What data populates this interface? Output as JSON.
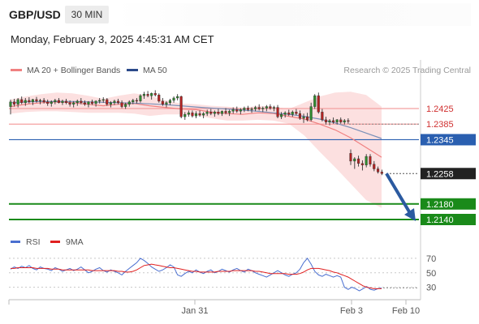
{
  "header": {
    "pair": "GBP/USD",
    "timeframe": "30 MIN",
    "datetime": "Monday, February 3, 2025 4:45:31 AM CET"
  },
  "legend": {
    "bb": {
      "label": "MA 20 + Bollinger Bands",
      "color": "#f08080"
    },
    "ma50": {
      "label": "MA 50",
      "color": "#2b4a8a"
    },
    "credit": "Research © 2025 Trading Central"
  },
  "levels": [
    {
      "value": 1.2425,
      "label": "1.2425",
      "kind": "resistance",
      "color": "#f4a0a0",
      "text_color": "#d03030"
    },
    {
      "value": 1.2385,
      "label": "1.2385",
      "kind": "resistance",
      "color": "#f4a0a0",
      "text_color": "#d03030"
    },
    {
      "value": 1.2345,
      "label": "1.2345",
      "kind": "pivot",
      "color": "#2a5fb0",
      "text_color": "#ffffff"
    },
    {
      "value": 1.2258,
      "label": "1.2258",
      "kind": "last",
      "color": "#222222",
      "text_color": "#ffffff"
    },
    {
      "value": 1.218,
      "label": "1.2180",
      "kind": "support",
      "color": "#1a8a1a",
      "text_color": "#ffffff"
    },
    {
      "value": 1.214,
      "label": "1.2140",
      "kind": "support",
      "color": "#1a8a1a",
      "text_color": "#ffffff"
    }
  ],
  "rsi_legend": {
    "rsi": {
      "label": "RSI",
      "color": "#4a6fd0"
    },
    "ma": {
      "label": "9MA",
      "color": "#e02020"
    }
  },
  "rsi_ticks": [
    "70",
    "50",
    "30"
  ],
  "x_axis": [
    "Jan 31",
    "Feb 3",
    "Feb 10"
  ],
  "chart_data": {
    "type": "line",
    "price_ylim": [
      1.21,
      1.256
    ],
    "candles": [
      [
        1.243,
        1.2448,
        1.241,
        1.2442
      ],
      [
        1.2442,
        1.245,
        1.243,
        1.2436
      ],
      [
        1.2436,
        1.2452,
        1.2428,
        1.2448
      ],
      [
        1.2448,
        1.2456,
        1.2436,
        1.244
      ],
      [
        1.244,
        1.2452,
        1.2432,
        1.2446
      ],
      [
        1.2446,
        1.2454,
        1.2438,
        1.2442
      ],
      [
        1.2442,
        1.245,
        1.2434,
        1.2448
      ],
      [
        1.2448,
        1.2455,
        1.244,
        1.2444
      ],
      [
        1.2444,
        1.245,
        1.2436,
        1.2446
      ],
      [
        1.2446,
        1.2452,
        1.2438,
        1.2442
      ],
      [
        1.2442,
        1.2448,
        1.2432,
        1.2438
      ],
      [
        1.2438,
        1.2446,
        1.243,
        1.2442
      ],
      [
        1.2442,
        1.245,
        1.2436,
        1.2446
      ],
      [
        1.2446,
        1.2452,
        1.2438,
        1.244
      ],
      [
        1.244,
        1.2448,
        1.2434,
        1.2444
      ],
      [
        1.2444,
        1.245,
        1.2436,
        1.244
      ],
      [
        1.244,
        1.2446,
        1.243,
        1.2436
      ],
      [
        1.2436,
        1.2444,
        1.2428,
        1.244
      ],
      [
        1.244,
        1.2448,
        1.2432,
        1.2444
      ],
      [
        1.2444,
        1.2452,
        1.2436,
        1.244
      ],
      [
        1.244,
        1.2446,
        1.2432,
        1.2436
      ],
      [
        1.2436,
        1.2444,
        1.2428,
        1.2442
      ],
      [
        1.2442,
        1.2448,
        1.2434,
        1.2438
      ],
      [
        1.2438,
        1.2446,
        1.243,
        1.2444
      ],
      [
        1.2444,
        1.2452,
        1.2438,
        1.2446
      ],
      [
        1.2446,
        1.2454,
        1.244,
        1.2448
      ],
      [
        1.2448,
        1.2452,
        1.2432,
        1.2436
      ],
      [
        1.2436,
        1.2444,
        1.2428,
        1.244
      ],
      [
        1.244,
        1.2448,
        1.2434,
        1.2444
      ],
      [
        1.2444,
        1.245,
        1.2436,
        1.244
      ],
      [
        1.244,
        1.2446,
        1.2426,
        1.243
      ],
      [
        1.243,
        1.244,
        1.2424,
        1.2436
      ],
      [
        1.2436,
        1.2446,
        1.243,
        1.2442
      ],
      [
        1.2442,
        1.245,
        1.2436,
        1.2446
      ],
      [
        1.2446,
        1.2452,
        1.2438,
        1.2444
      ],
      [
        1.2444,
        1.2462,
        1.244,
        1.2458
      ],
      [
        1.2458,
        1.2468,
        1.245,
        1.2462
      ],
      [
        1.2462,
        1.247,
        1.2454,
        1.2458
      ],
      [
        1.2458,
        1.2466,
        1.2448,
        1.2464
      ],
      [
        1.2464,
        1.2472,
        1.2456,
        1.246
      ],
      [
        1.246,
        1.2464,
        1.244,
        1.2444
      ],
      [
        1.2444,
        1.2452,
        1.2432,
        1.2436
      ],
      [
        1.2436,
        1.2444,
        1.2428,
        1.244
      ],
      [
        1.244,
        1.245,
        1.2434,
        1.2446
      ],
      [
        1.2446,
        1.2456,
        1.244,
        1.2452
      ],
      [
        1.2452,
        1.2462,
        1.2446,
        1.2456
      ],
      [
        1.2456,
        1.2458,
        1.24,
        1.2404
      ],
      [
        1.2404,
        1.2416,
        1.2396,
        1.241
      ],
      [
        1.241,
        1.242,
        1.2404,
        1.2414
      ],
      [
        1.2414,
        1.242,
        1.2402,
        1.2406
      ],
      [
        1.2406,
        1.2418,
        1.24,
        1.2412
      ],
      [
        1.2412,
        1.242,
        1.2404,
        1.2408
      ],
      [
        1.2408,
        1.2416,
        1.24,
        1.2412
      ],
      [
        1.2412,
        1.2422,
        1.2406,
        1.2416
      ],
      [
        1.2416,
        1.2424,
        1.2408,
        1.2412
      ],
      [
        1.2412,
        1.242,
        1.2404,
        1.2416
      ],
      [
        1.2416,
        1.2424,
        1.2408,
        1.2412
      ],
      [
        1.2412,
        1.242,
        1.2406,
        1.2418
      ],
      [
        1.2418,
        1.2426,
        1.241,
        1.2414
      ],
      [
        1.2414,
        1.2422,
        1.2406,
        1.2418
      ],
      [
        1.2418,
        1.2428,
        1.2412,
        1.2422
      ],
      [
        1.2422,
        1.243,
        1.2414,
        1.2418
      ],
      [
        1.2418,
        1.2426,
        1.241,
        1.2422
      ],
      [
        1.2422,
        1.243,
        1.2416,
        1.2426
      ],
      [
        1.2426,
        1.2432,
        1.2418,
        1.2422
      ],
      [
        1.2422,
        1.2428,
        1.2414,
        1.2424
      ],
      [
        1.2424,
        1.2432,
        1.2418,
        1.2428
      ],
      [
        1.2428,
        1.2436,
        1.242,
        1.2424
      ],
      [
        1.2424,
        1.243,
        1.2416,
        1.2426
      ],
      [
        1.2426,
        1.2434,
        1.2418,
        1.243
      ],
      [
        1.243,
        1.2436,
        1.2422,
        1.2426
      ],
      [
        1.2426,
        1.2432,
        1.2418,
        1.2428
      ],
      [
        1.2428,
        1.2434,
        1.24,
        1.2404
      ],
      [
        1.2404,
        1.2416,
        1.2398,
        1.241
      ],
      [
        1.241,
        1.2418,
        1.2402,
        1.2414
      ],
      [
        1.2414,
        1.2422,
        1.2406,
        1.241
      ],
      [
        1.241,
        1.242,
        1.2404,
        1.2416
      ],
      [
        1.2416,
        1.2424,
        1.2408,
        1.2412
      ],
      [
        1.2412,
        1.242,
        1.2396,
        1.24
      ],
      [
        1.24,
        1.2412,
        1.2388,
        1.2404
      ],
      [
        1.2404,
        1.2414,
        1.2392,
        1.2396
      ],
      [
        1.2396,
        1.244,
        1.2392,
        1.243
      ],
      [
        1.243,
        1.2462,
        1.2424,
        1.2458
      ],
      [
        1.2458,
        1.2466,
        1.2412,
        1.2416
      ],
      [
        1.2416,
        1.2424,
        1.2392,
        1.2396
      ],
      [
        1.2396,
        1.2404,
        1.2384,
        1.239
      ],
      [
        1.239,
        1.2398,
        1.2382,
        1.2394
      ],
      [
        1.2394,
        1.2402,
        1.2386,
        1.239
      ],
      [
        1.239,
        1.2398,
        1.2384,
        1.2396
      ],
      [
        1.2396,
        1.2402,
        1.2386,
        1.239
      ],
      [
        1.239,
        1.2398,
        1.2384,
        1.2394
      ],
      [
        1.2394,
        1.24,
        1.2386,
        1.2392
      ],
      [
        1.231,
        1.232,
        1.228,
        1.229
      ],
      [
        1.229,
        1.23,
        1.227,
        1.2296
      ],
      [
        1.2296,
        1.2304,
        1.2276,
        1.2284
      ],
      [
        1.2284,
        1.2292,
        1.2266,
        1.228
      ],
      [
        1.228,
        1.2308,
        1.2274,
        1.2302
      ],
      [
        1.2302,
        1.2308,
        1.2276,
        1.2282
      ],
      [
        1.2282,
        1.229,
        1.2264,
        1.227
      ],
      [
        1.227,
        1.2276,
        1.2258,
        1.2262
      ],
      [
        1.2262,
        1.2268,
        1.2254,
        1.2258
      ]
    ],
    "ma20": [
      1.243,
      1.2436,
      1.244,
      1.2442,
      1.244,
      1.2436,
      1.2432,
      1.2436,
      1.2438,
      1.2432,
      1.2428,
      1.2424,
      1.2422,
      1.2416,
      1.2412,
      1.241,
      1.2414,
      1.2412,
      1.2405,
      1.2398,
      1.2385,
      1.237,
      1.235,
      1.2325,
      1.23
    ],
    "bb_upper": [
      1.2448,
      1.2456,
      1.2462,
      1.2466,
      1.2464,
      1.2458,
      1.245,
      1.2458,
      1.2464,
      1.2458,
      1.2446,
      1.2438,
      1.2436,
      1.2432,
      1.243,
      1.2426,
      1.2432,
      1.243,
      1.2424,
      1.244,
      1.2456,
      1.2466,
      1.2468,
      1.246,
      1.243
    ],
    "bb_lower": [
      1.2412,
      1.2416,
      1.2418,
      1.2418,
      1.2416,
      1.2414,
      1.2414,
      1.2414,
      1.2412,
      1.2406,
      1.241,
      1.241,
      1.2408,
      1.24,
      1.2394,
      1.2394,
      1.2396,
      1.2394,
      1.2386,
      1.2356,
      1.2314,
      1.2274,
      1.2232,
      1.219,
      1.217
    ],
    "ma50": [
      1.244,
      1.2442,
      1.2443,
      1.2443,
      1.2443,
      1.2442,
      1.2441,
      1.244,
      1.2439,
      1.2437,
      1.2435,
      1.2432,
      1.2429,
      1.2426,
      1.2424,
      1.2421,
      1.2418,
      1.2414,
      1.241,
      1.2405,
      1.2398,
      1.2388,
      1.2376,
      1.2362,
      1.2348
    ],
    "forecast": {
      "from": 1.2258,
      "to": 1.214
    },
    "rsi": [
      55,
      58,
      56,
      59,
      57,
      60,
      56,
      54,
      58,
      56,
      55,
      53,
      57,
      55,
      52,
      54,
      56,
      53,
      55,
      58,
      54,
      50,
      52,
      55,
      57,
      53,
      51,
      54,
      52,
      50,
      47,
      52,
      56,
      60,
      64,
      70,
      67,
      63,
      58,
      55,
      52,
      54,
      57,
      61,
      58,
      47,
      45,
      49,
      52,
      50,
      54,
      51,
      49,
      52,
      54,
      50,
      52,
      55,
      53,
      51,
      54,
      56,
      53,
      51,
      55,
      53,
      50,
      48,
      46,
      44,
      47,
      50,
      53,
      50,
      47,
      45,
      48,
      50,
      55,
      64,
      70,
      62,
      52,
      47,
      45,
      48,
      46,
      44,
      46,
      44,
      30,
      27,
      30,
      28,
      25,
      28,
      31,
      27,
      26,
      28,
      29
    ],
    "rsi_ma": [
      56,
      56,
      57,
      57,
      57,
      57,
      57,
      56,
      56,
      56,
      56,
      55,
      55,
      55,
      54,
      54,
      54,
      54,
      54,
      54,
      54,
      54,
      53,
      53,
      53,
      53,
      53,
      53,
      53,
      52,
      52,
      51,
      51,
      52,
      54,
      57,
      60,
      61,
      62,
      61,
      60,
      59,
      58,
      57,
      57,
      56,
      55,
      54,
      53,
      52,
      52,
      51,
      51,
      51,
      51,
      51,
      52,
      52,
      52,
      52,
      53,
      53,
      53,
      53,
      53,
      53,
      52,
      52,
      51,
      50,
      49,
      49,
      49,
      49,
      49,
      48,
      48,
      48,
      49,
      51,
      54,
      56,
      56,
      56,
      55,
      54,
      53,
      51,
      50,
      48,
      46,
      44,
      41,
      38,
      35,
      32,
      30,
      29,
      28,
      28,
      28
    ],
    "rsi_ylim": [
      15,
      80
    ]
  }
}
